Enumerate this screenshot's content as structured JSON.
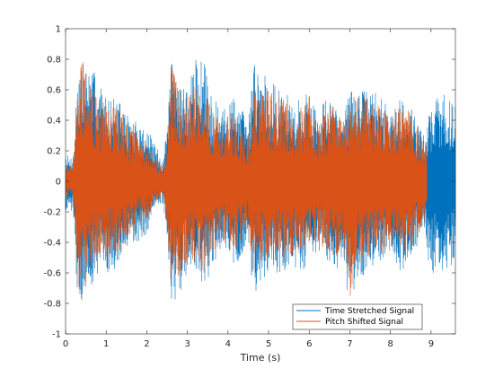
{
  "chart_data": {
    "type": "line",
    "title": "",
    "xlabel": "Time (s)",
    "ylabel": "",
    "xlim": [
      0,
      9.6
    ],
    "ylim": [
      -1,
      1
    ],
    "xticks": [
      0,
      1,
      2,
      3,
      4,
      5,
      6,
      7,
      8,
      9
    ],
    "yticks": [
      -1,
      -0.8,
      -0.6,
      -0.4,
      -0.2,
      0,
      0.2,
      0.4,
      0.6,
      0.8,
      1
    ],
    "xtick_labels": [
      "0",
      "1",
      "2",
      "3",
      "4",
      "5",
      "6",
      "7",
      "8",
      "9"
    ],
    "ytick_labels": [
      "-1",
      "-0.8",
      "-0.6",
      "-0.4",
      "-0.2",
      "0",
      "0.2",
      "0.4",
      "0.6",
      "0.8",
      "1"
    ],
    "grid": false,
    "legend_position": "bottom-right",
    "series": [
      {
        "name": "Time Stretched Signal",
        "color": "#0072BD",
        "envelope": {
          "t": [
            0.0,
            0.1,
            0.2,
            0.3,
            0.4,
            0.6,
            0.8,
            1.0,
            1.2,
            1.4,
            1.6,
            1.8,
            2.0,
            2.2,
            2.4,
            2.5,
            2.6,
            2.8,
            3.0,
            3.2,
            3.4,
            3.6,
            3.8,
            4.0,
            4.2,
            4.4,
            4.5,
            4.6,
            4.8,
            5.0,
            5.2,
            5.4,
            5.6,
            5.8,
            6.0,
            6.2,
            6.4,
            6.6,
            6.8,
            7.0,
            7.2,
            7.4,
            7.6,
            7.8,
            8.0,
            8.2,
            8.4,
            8.6,
            8.8,
            9.0,
            9.2,
            9.4,
            9.6
          ],
          "upper": [
            0.2,
            0.15,
            0.2,
            0.8,
            0.8,
            0.75,
            0.7,
            0.55,
            0.55,
            0.5,
            0.4,
            0.4,
            0.35,
            0.25,
            0.15,
            0.35,
            0.8,
            0.7,
            0.6,
            0.8,
            0.8,
            0.6,
            0.45,
            0.5,
            0.6,
            0.45,
            0.35,
            0.8,
            0.75,
            0.75,
            0.6,
            0.6,
            0.5,
            0.55,
            0.6,
            0.45,
            0.55,
            0.5,
            0.45,
            0.6,
            0.6,
            0.6,
            0.6,
            0.55,
            0.45,
            0.55,
            0.55,
            0.45,
            0.3,
            0.5,
            0.6,
            0.55,
            0.5
          ],
          "lower": [
            -0.2,
            -0.15,
            -0.25,
            -0.8,
            -0.8,
            -0.7,
            -0.6,
            -0.6,
            -0.6,
            -0.5,
            -0.45,
            -0.4,
            -0.35,
            -0.2,
            -0.15,
            -0.35,
            -0.8,
            -0.75,
            -0.6,
            -0.6,
            -0.7,
            -0.6,
            -0.45,
            -0.5,
            -0.6,
            -0.45,
            -0.35,
            -0.8,
            -0.65,
            -0.65,
            -0.6,
            -0.6,
            -0.55,
            -0.6,
            -0.55,
            -0.45,
            -0.5,
            -0.6,
            -0.55,
            -0.8,
            -0.65,
            -0.65,
            -0.6,
            -0.55,
            -0.5,
            -0.65,
            -0.6,
            -0.45,
            -0.35,
            -0.6,
            -0.6,
            -0.6,
            -0.5
          ]
        }
      },
      {
        "name": "Pitch Shifted Signal",
        "color": "#D95319",
        "envelope": {
          "t": [
            0.0,
            0.1,
            0.2,
            0.3,
            0.4,
            0.6,
            0.8,
            1.0,
            1.2,
            1.4,
            1.6,
            1.8,
            2.0,
            2.2,
            2.4,
            2.5,
            2.6,
            2.8,
            3.0,
            3.2,
            3.4,
            3.6,
            3.8,
            4.0,
            4.2,
            4.4,
            4.5,
            4.6,
            4.8,
            5.0,
            5.2,
            5.4,
            5.6,
            5.8,
            6.0,
            6.2,
            6.4,
            6.6,
            6.8,
            7.0,
            7.2,
            7.4,
            7.6,
            7.8,
            8.0,
            8.2,
            8.4,
            8.6,
            8.8,
            8.9
          ],
          "upper": [
            0.12,
            0.1,
            0.15,
            0.65,
            0.8,
            0.7,
            0.55,
            0.5,
            0.5,
            0.45,
            0.35,
            0.3,
            0.25,
            0.15,
            0.12,
            0.3,
            0.8,
            0.65,
            0.55,
            0.65,
            0.6,
            0.5,
            0.4,
            0.45,
            0.45,
            0.35,
            0.3,
            0.6,
            0.6,
            0.6,
            0.55,
            0.55,
            0.45,
            0.5,
            0.55,
            0.4,
            0.45,
            0.5,
            0.4,
            0.55,
            0.55,
            0.55,
            0.5,
            0.5,
            0.4,
            0.5,
            0.5,
            0.4,
            0.3,
            0.25
          ],
          "lower": [
            -0.12,
            -0.1,
            -0.15,
            -0.7,
            -0.8,
            -0.6,
            -0.5,
            -0.5,
            -0.5,
            -0.45,
            -0.35,
            -0.3,
            -0.25,
            -0.15,
            -0.12,
            -0.3,
            -0.8,
            -0.65,
            -0.55,
            -0.55,
            -0.6,
            -0.55,
            -0.4,
            -0.45,
            -0.5,
            -0.35,
            -0.3,
            -0.6,
            -0.55,
            -0.55,
            -0.5,
            -0.55,
            -0.5,
            -0.5,
            -0.45,
            -0.4,
            -0.45,
            -0.5,
            -0.45,
            -0.8,
            -0.55,
            -0.55,
            -0.5,
            -0.5,
            -0.45,
            -0.5,
            -0.5,
            -0.4,
            -0.3,
            -0.25
          ]
        }
      }
    ]
  }
}
